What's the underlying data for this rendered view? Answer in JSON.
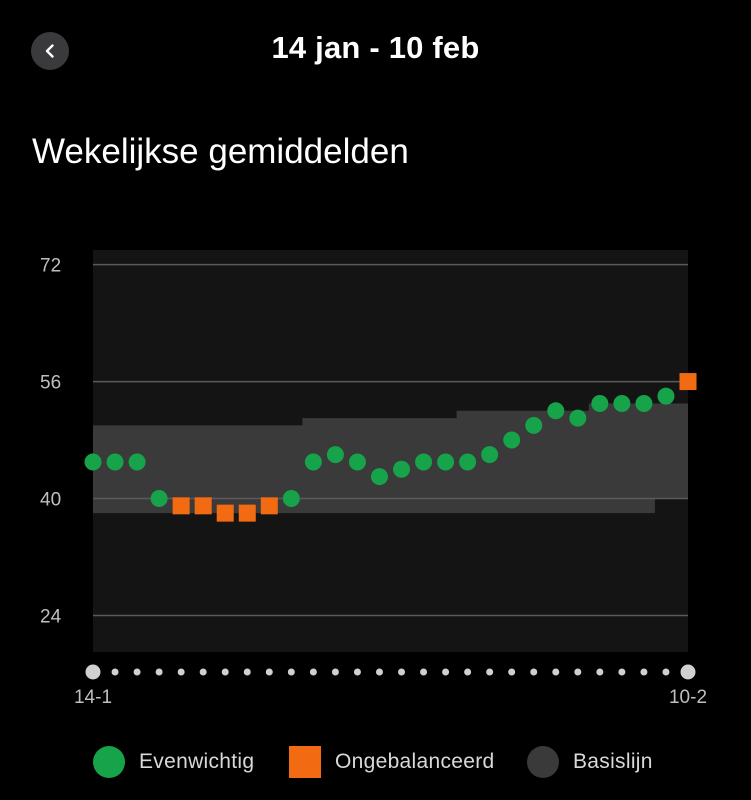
{
  "header": {
    "title": "14 jan - 10 feb",
    "back_icon": "chevron-left-icon"
  },
  "section_title": "Wekelijkse gemiddelden",
  "colors": {
    "balanced": "#16a34a",
    "unbalanced": "#f26b12",
    "baseline": "#3a3a3a",
    "plot_bg": "#141414",
    "grid": "#5a5a5a",
    "dot": "#d0d0d0"
  },
  "legend": [
    {
      "key": "balanced",
      "label": "Evenwichtig",
      "shape": "circle"
    },
    {
      "key": "unbalanced",
      "label": "Ongebalanceerd",
      "shape": "square"
    },
    {
      "key": "baseline",
      "label": "Basislijn",
      "shape": "circle"
    }
  ],
  "chart_data": {
    "type": "scatter",
    "title": "Wekelijkse gemiddelden",
    "ylim": [
      19,
      74
    ],
    "yticks": [
      72,
      56,
      40,
      24
    ],
    "grid": true,
    "x_first_label": "14-1",
    "x_last_label": "10-2",
    "n_points": 28,
    "values": [
      45,
      45,
      45,
      40,
      39,
      39,
      38,
      38,
      39,
      40,
      45,
      46,
      45,
      43,
      44,
      45,
      45,
      45,
      46,
      48,
      50,
      52,
      51,
      53,
      53,
      53,
      54,
      56
    ],
    "status": [
      "balanced",
      "balanced",
      "balanced",
      "balanced",
      "unbalanced",
      "unbalanced",
      "unbalanced",
      "unbalanced",
      "unbalanced",
      "balanced",
      "balanced",
      "balanced",
      "balanced",
      "balanced",
      "balanced",
      "balanced",
      "balanced",
      "balanced",
      "balanced",
      "balanced",
      "balanced",
      "balanced",
      "balanced",
      "balanced",
      "balanced",
      "balanced",
      "balanced",
      "unbalanced"
    ],
    "baseline_upper": [
      50,
      50,
      50,
      50,
      50,
      50,
      50,
      50,
      50,
      50,
      51,
      51,
      51,
      51,
      51,
      51,
      51,
      52,
      52,
      52,
      52,
      52,
      52,
      53,
      53,
      53,
      53,
      53
    ],
    "baseline_lower": [
      38,
      38,
      38,
      38,
      38,
      38,
      38,
      38,
      38,
      38,
      38,
      38,
      38,
      38,
      38,
      38,
      38,
      38,
      38,
      38,
      38,
      38,
      38,
      38,
      38,
      38,
      40,
      40
    ],
    "legend_position": "bottom"
  }
}
